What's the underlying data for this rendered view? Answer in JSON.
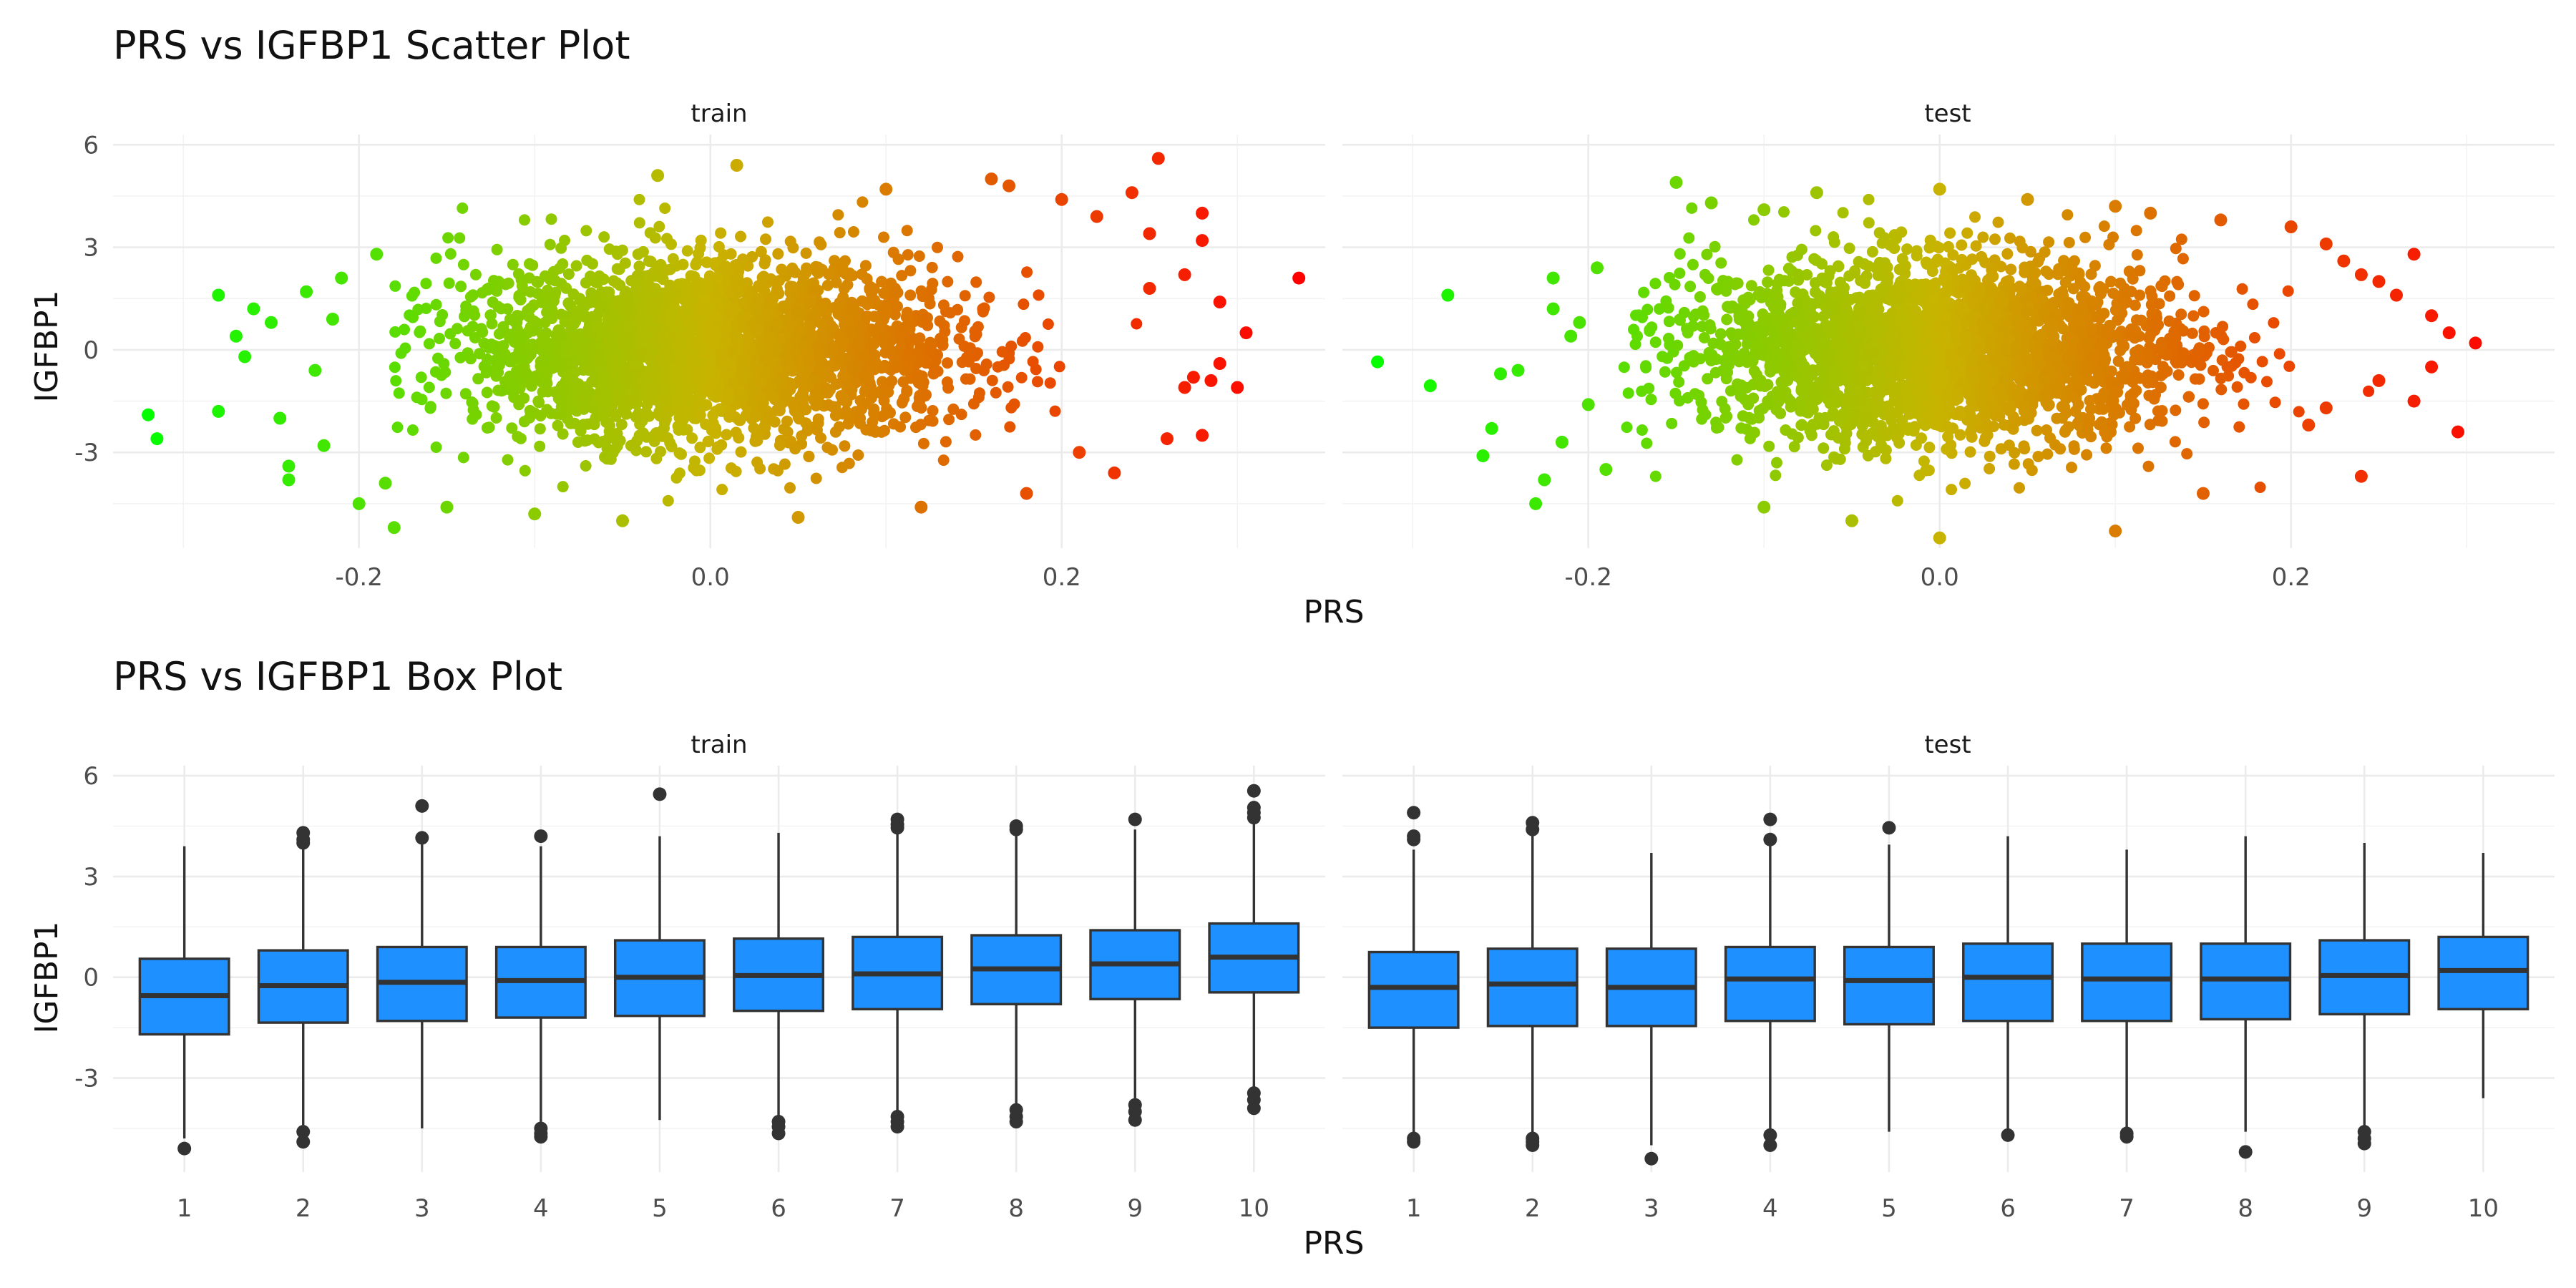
{
  "chart_data": [
    {
      "type": "scatter",
      "title": "PRS vs IGFBP1 Scatter Plot",
      "xlabel": "PRS",
      "ylabel": "IGFBP1",
      "facets": [
        "train",
        "test"
      ],
      "xlim": [
        -0.34,
        0.35
      ],
      "ylim": [
        -5.8,
        6.3
      ],
      "x_ticks": [
        -0.2,
        0.0,
        0.2
      ],
      "x_tick_labels": [
        "-0.2",
        "0.0",
        "0.2"
      ],
      "y_ticks": [
        -3,
        0,
        3,
        6
      ],
      "y_tick_labels": [
        "-3",
        "0",
        "3",
        "6"
      ],
      "grid": true,
      "legend": "none",
      "color_gradient": {
        "low": "#00ff00",
        "high": "#ff0000",
        "mapped_to": "PRS"
      },
      "bulk_distribution": {
        "x_mean": 0.0,
        "x_sd": 0.075,
        "y_mean": 0.0,
        "y_sd": 1.4
      },
      "points": {
        "train": [
          [
            -0.32,
            -1.9
          ],
          [
            -0.315,
            -2.6
          ],
          [
            -0.28,
            1.6
          ],
          [
            -0.28,
            -1.8
          ],
          [
            -0.27,
            0.4
          ],
          [
            -0.265,
            -0.2
          ],
          [
            -0.26,
            1.2
          ],
          [
            -0.25,
            0.8
          ],
          [
            -0.245,
            -2.0
          ],
          [
            -0.24,
            -3.4
          ],
          [
            -0.24,
            -3.8
          ],
          [
            -0.23,
            1.7
          ],
          [
            -0.225,
            -0.6
          ],
          [
            -0.22,
            -2.8
          ],
          [
            -0.215,
            0.9
          ],
          [
            -0.21,
            2.1
          ],
          [
            -0.2,
            -4.5
          ],
          [
            -0.19,
            2.8
          ],
          [
            -0.185,
            -3.9
          ],
          [
            -0.18,
            -5.2
          ],
          [
            -0.03,
            5.1
          ],
          [
            0.015,
            5.4
          ],
          [
            0.1,
            4.7
          ],
          [
            0.16,
            5.0
          ],
          [
            0.17,
            4.8
          ],
          [
            0.2,
            4.4
          ],
          [
            0.22,
            3.9
          ],
          [
            0.24,
            4.6
          ],
          [
            0.25,
            3.4
          ],
          [
            0.25,
            1.8
          ],
          [
            0.255,
            5.6
          ],
          [
            0.26,
            -2.6
          ],
          [
            0.27,
            2.2
          ],
          [
            0.27,
            -1.1
          ],
          [
            0.275,
            -0.8
          ],
          [
            0.28,
            3.2
          ],
          [
            0.28,
            -2.5
          ],
          [
            0.285,
            -0.9
          ],
          [
            0.28,
            4.0
          ],
          [
            0.29,
            -0.4
          ],
          [
            0.29,
            1.4
          ],
          [
            0.3,
            -1.1
          ],
          [
            0.305,
            0.5
          ],
          [
            0.335,
            2.1
          ],
          [
            0.23,
            -3.6
          ],
          [
            0.18,
            -4.2
          ],
          [
            0.12,
            -4.6
          ],
          [
            0.05,
            -4.9
          ],
          [
            -0.05,
            -5.0
          ],
          [
            -0.1,
            -4.8
          ],
          [
            -0.15,
            -4.6
          ],
          [
            0.21,
            -3.0
          ]
        ],
        "test": [
          [
            -0.32,
            -0.35
          ],
          [
            -0.28,
            1.6
          ],
          [
            -0.29,
            -1.05
          ],
          [
            -0.26,
            -3.1
          ],
          [
            -0.255,
            -2.3
          ],
          [
            -0.25,
            -0.7
          ],
          [
            -0.24,
            -0.6
          ],
          [
            -0.23,
            -4.5
          ],
          [
            -0.225,
            -3.8
          ],
          [
            -0.22,
            1.2
          ],
          [
            -0.22,
            2.1
          ],
          [
            -0.215,
            -2.7
          ],
          [
            -0.21,
            0.4
          ],
          [
            -0.205,
            0.8
          ],
          [
            -0.2,
            -1.6
          ],
          [
            -0.195,
            2.4
          ],
          [
            -0.19,
            -3.5
          ],
          [
            -0.15,
            4.9
          ],
          [
            -0.13,
            4.3
          ],
          [
            -0.1,
            4.1
          ],
          [
            -0.07,
            4.6
          ],
          [
            0.0,
            4.7
          ],
          [
            0.05,
            4.4
          ],
          [
            0.1,
            4.2
          ],
          [
            0.12,
            4.0
          ],
          [
            0.16,
            3.8
          ],
          [
            0.2,
            3.6
          ],
          [
            0.22,
            3.1
          ],
          [
            0.23,
            2.6
          ],
          [
            0.24,
            2.2
          ],
          [
            0.25,
            2.0
          ],
          [
            0.26,
            1.6
          ],
          [
            0.27,
            2.8
          ],
          [
            0.27,
            -1.5
          ],
          [
            0.28,
            1.0
          ],
          [
            0.28,
            -0.5
          ],
          [
            0.29,
            0.5
          ],
          [
            0.295,
            -2.4
          ],
          [
            0.305,
            0.2
          ],
          [
            0.24,
            -3.7
          ],
          [
            0.21,
            -2.2
          ],
          [
            0.15,
            -4.2
          ],
          [
            0.1,
            -5.3
          ],
          [
            0.0,
            -5.5
          ],
          [
            -0.05,
            -5.0
          ],
          [
            -0.1,
            -4.6
          ],
          [
            0.22,
            -1.7
          ],
          [
            0.25,
            -0.9
          ]
        ]
      }
    },
    {
      "type": "box",
      "title": "PRS vs IGFBP1 Box Plot",
      "xlabel": "PRS",
      "ylabel": "IGFBP1",
      "facets": [
        "train",
        "test"
      ],
      "categories": [
        "1",
        "2",
        "3",
        "4",
        "5",
        "6",
        "7",
        "8",
        "9",
        "10"
      ],
      "ylim": [
        -5.8,
        6.3
      ],
      "y_ticks": [
        -3,
        0,
        3,
        6
      ],
      "y_tick_labels": [
        "-3",
        "0",
        "3",
        "6"
      ],
      "grid": true,
      "legend": "none",
      "fill_color": "#1e90ff",
      "boxes": {
        "train": [
          {
            "q1": -1.7,
            "median": -0.55,
            "q3": 0.55,
            "lower": -4.8,
            "upper": 3.9,
            "outliers": [
              -5.1
            ]
          },
          {
            "q1": -1.35,
            "median": -0.25,
            "q3": 0.8,
            "lower": -4.4,
            "upper": 3.85,
            "outliers": [
              4.0,
              4.1,
              4.3,
              -4.6,
              -4.9
            ]
          },
          {
            "q1": -1.3,
            "median": -0.15,
            "q3": 0.9,
            "lower": -4.5,
            "upper": 4.0,
            "outliers": [
              5.1,
              4.15
            ]
          },
          {
            "q1": -1.2,
            "median": -0.1,
            "q3": 0.9,
            "lower": -4.3,
            "upper": 3.9,
            "outliers": [
              4.2,
              -4.5,
              -4.65,
              -4.75
            ]
          },
          {
            "q1": -1.15,
            "median": 0.0,
            "q3": 1.1,
            "lower": -4.25,
            "upper": 4.2,
            "outliers": [
              5.45
            ]
          },
          {
            "q1": -1.0,
            "median": 0.05,
            "q3": 1.15,
            "lower": -4.2,
            "upper": 4.3,
            "outliers": [
              -4.3,
              -4.45,
              -4.65
            ]
          },
          {
            "q1": -0.95,
            "median": 0.1,
            "q3": 1.2,
            "lower": -4.0,
            "upper": 4.3,
            "outliers": [
              4.45,
              4.55,
              4.7,
              -4.15,
              -4.3,
              -4.45
            ]
          },
          {
            "q1": -0.8,
            "median": 0.25,
            "q3": 1.25,
            "lower": -3.8,
            "upper": 4.3,
            "outliers": [
              4.4,
              4.5,
              -3.95,
              -4.15,
              -4.3
            ]
          },
          {
            "q1": -0.65,
            "median": 0.4,
            "q3": 1.4,
            "lower": -3.6,
            "upper": 4.4,
            "outliers": [
              4.7,
              -3.8,
              -4.0,
              -4.25
            ]
          },
          {
            "q1": -0.45,
            "median": 0.6,
            "q3": 1.6,
            "lower": -3.3,
            "upper": 4.6,
            "outliers": [
              4.75,
              4.9,
              5.05,
              5.55,
              -3.45,
              -3.65,
              -3.9
            ]
          }
        ],
        "test": [
          {
            "q1": -1.5,
            "median": -0.3,
            "q3": 0.75,
            "lower": -4.7,
            "upper": 3.8,
            "outliers": [
              4.9,
              4.2,
              4.1,
              -4.8,
              -4.9
            ]
          },
          {
            "q1": -1.45,
            "median": -0.2,
            "q3": 0.85,
            "lower": -4.7,
            "upper": 4.3,
            "outliers": [
              4.4,
              4.6,
              -4.8,
              -4.9,
              -5.0
            ]
          },
          {
            "q1": -1.45,
            "median": -0.3,
            "q3": 0.85,
            "lower": -5.0,
            "upper": 3.7,
            "outliers": [
              -5.4
            ]
          },
          {
            "q1": -1.3,
            "median": -0.05,
            "q3": 0.9,
            "lower": -4.5,
            "upper": 3.95,
            "outliers": [
              4.7,
              4.1,
              -4.7,
              -5.0
            ]
          },
          {
            "q1": -1.4,
            "median": -0.1,
            "q3": 0.9,
            "lower": -4.6,
            "upper": 3.95,
            "outliers": [
              4.45
            ]
          },
          {
            "q1": -1.3,
            "median": 0.0,
            "q3": 1.0,
            "lower": -4.6,
            "upper": 4.2,
            "outliers": [
              -4.7
            ]
          },
          {
            "q1": -1.3,
            "median": -0.05,
            "q3": 1.0,
            "lower": -4.5,
            "upper": 3.8,
            "outliers": [
              -4.65,
              -4.75
            ]
          },
          {
            "q1": -1.25,
            "median": -0.05,
            "q3": 1.0,
            "lower": -4.6,
            "upper": 4.2,
            "outliers": [
              -5.2
            ]
          },
          {
            "q1": -1.1,
            "median": 0.05,
            "q3": 1.1,
            "lower": -4.5,
            "upper": 4.0,
            "outliers": [
              -4.6,
              -4.8,
              -4.95
            ]
          },
          {
            "q1": -0.95,
            "median": 0.2,
            "q3": 1.2,
            "lower": -3.6,
            "upper": 3.7,
            "outliers": []
          }
        ]
      }
    }
  ]
}
